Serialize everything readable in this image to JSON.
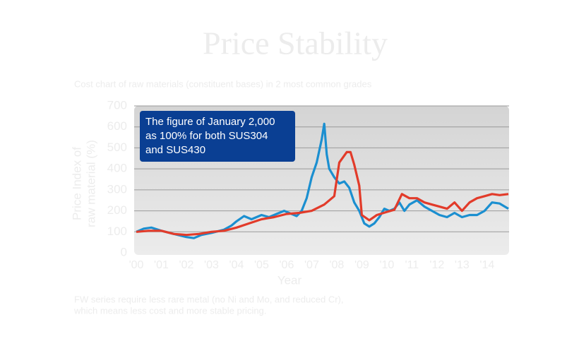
{
  "chart_data": {
    "type": "line",
    "title": "Price Stability",
    "subtitle": "Cost chart of raw materials (constituent bases) in 2 most common grades",
    "y_label": [
      "Price Index of",
      "raw material (%)"
    ],
    "x_label": "Year",
    "annotation": [
      "The figure of January 2,000",
      "as 100% for both SUS304",
      "and SUS430"
    ],
    "footnote": [
      "FW series require less rare metal (no Ni and Mo, and reduced Cr),",
      "which means less cost and more stable pricing."
    ],
    "xlim": [
      2000,
      2014.85
    ],
    "xticks": [
      {
        "value": 2000,
        "label": "'00"
      },
      {
        "value": 2001,
        "label": "'01"
      },
      {
        "value": 2002,
        "label": "'02"
      },
      {
        "value": 2003,
        "label": "'03"
      },
      {
        "value": 2004,
        "label": "'04"
      },
      {
        "value": 2005,
        "label": "'05"
      },
      {
        "value": 2006,
        "label": "'06"
      },
      {
        "value": 2007,
        "label": "'07"
      },
      {
        "value": 2008,
        "label": "'08"
      },
      {
        "value": 2009,
        "label": "'09"
      },
      {
        "value": 2010,
        "label": "'10"
      },
      {
        "value": 2011,
        "label": "'11"
      },
      {
        "value": 2012,
        "label": "'12"
      },
      {
        "value": 2013,
        "label": "'13"
      },
      {
        "value": 2014,
        "label": "'14"
      }
    ],
    "ylim": [
      0,
      700
    ],
    "yticks": [
      0,
      100,
      200,
      300,
      400,
      500,
      600,
      700
    ],
    "grid": true,
    "series": [
      {
        "color": "#1b8fd0",
        "x": [
          2000,
          2000.3,
          2000.6,
          2001,
          2001.5,
          2002,
          2002.3,
          2002.6,
          2003,
          2003.5,
          2003.8,
          2004,
          2004.3,
          2004.6,
          2005,
          2005.3,
          2005.6,
          2005.9,
          2006.2,
          2006.4,
          2006.6,
          2006.8,
          2007.0,
          2007.2,
          2007.4,
          2007.5,
          2007.6,
          2007.7,
          2007.9,
          2008.1,
          2008.3,
          2008.5,
          2008.7,
          2008.9,
          2009.1,
          2009.3,
          2009.5,
          2009.7,
          2009.9,
          2010.1,
          2010.3,
          2010.5,
          2010.7,
          2010.9,
          2011.2,
          2011.5,
          2011.8,
          2012.1,
          2012.4,
          2012.7,
          2013.0,
          2013.3,
          2013.6,
          2013.9,
          2014.2,
          2014.5,
          2014.85
        ],
        "values": [
          100,
          115,
          120,
          105,
          90,
          75,
          70,
          85,
          95,
          110,
          130,
          150,
          175,
          160,
          180,
          170,
          185,
          200,
          185,
          175,
          200,
          260,
          360,
          430,
          540,
          615,
          470,
          400,
          360,
          330,
          340,
          310,
          240,
          200,
          140,
          125,
          140,
          170,
          210,
          200,
          210,
          240,
          200,
          230,
          250,
          220,
          200,
          180,
          170,
          190,
          170,
          180,
          180,
          200,
          240,
          235,
          210
        ]
      },
      {
        "color": "#e23b2a",
        "x": [
          2000,
          2000.5,
          2001,
          2001.5,
          2002,
          2002.5,
          2003,
          2003.5,
          2004,
          2004.5,
          2005,
          2005.5,
          2006,
          2006.5,
          2007,
          2007.5,
          2007.9,
          2008.1,
          2008.4,
          2008.55,
          2008.7,
          2008.9,
          2009.0,
          2009.3,
          2009.6,
          2010.0,
          2010.3,
          2010.6,
          2010.9,
          2011.2,
          2011.5,
          2011.8,
          2012.1,
          2012.4,
          2012.7,
          2013.0,
          2013.3,
          2013.6,
          2013.9,
          2014.2,
          2014.5,
          2014.85
        ],
        "values": [
          100,
          105,
          105,
          90,
          85,
          90,
          100,
          105,
          120,
          140,
          160,
          170,
          185,
          190,
          200,
          230,
          270,
          430,
          480,
          480,
          420,
          320,
          180,
          155,
          180,
          195,
          205,
          280,
          260,
          260,
          240,
          230,
          220,
          210,
          240,
          200,
          240,
          260,
          270,
          280,
          275,
          280
        ]
      }
    ]
  }
}
